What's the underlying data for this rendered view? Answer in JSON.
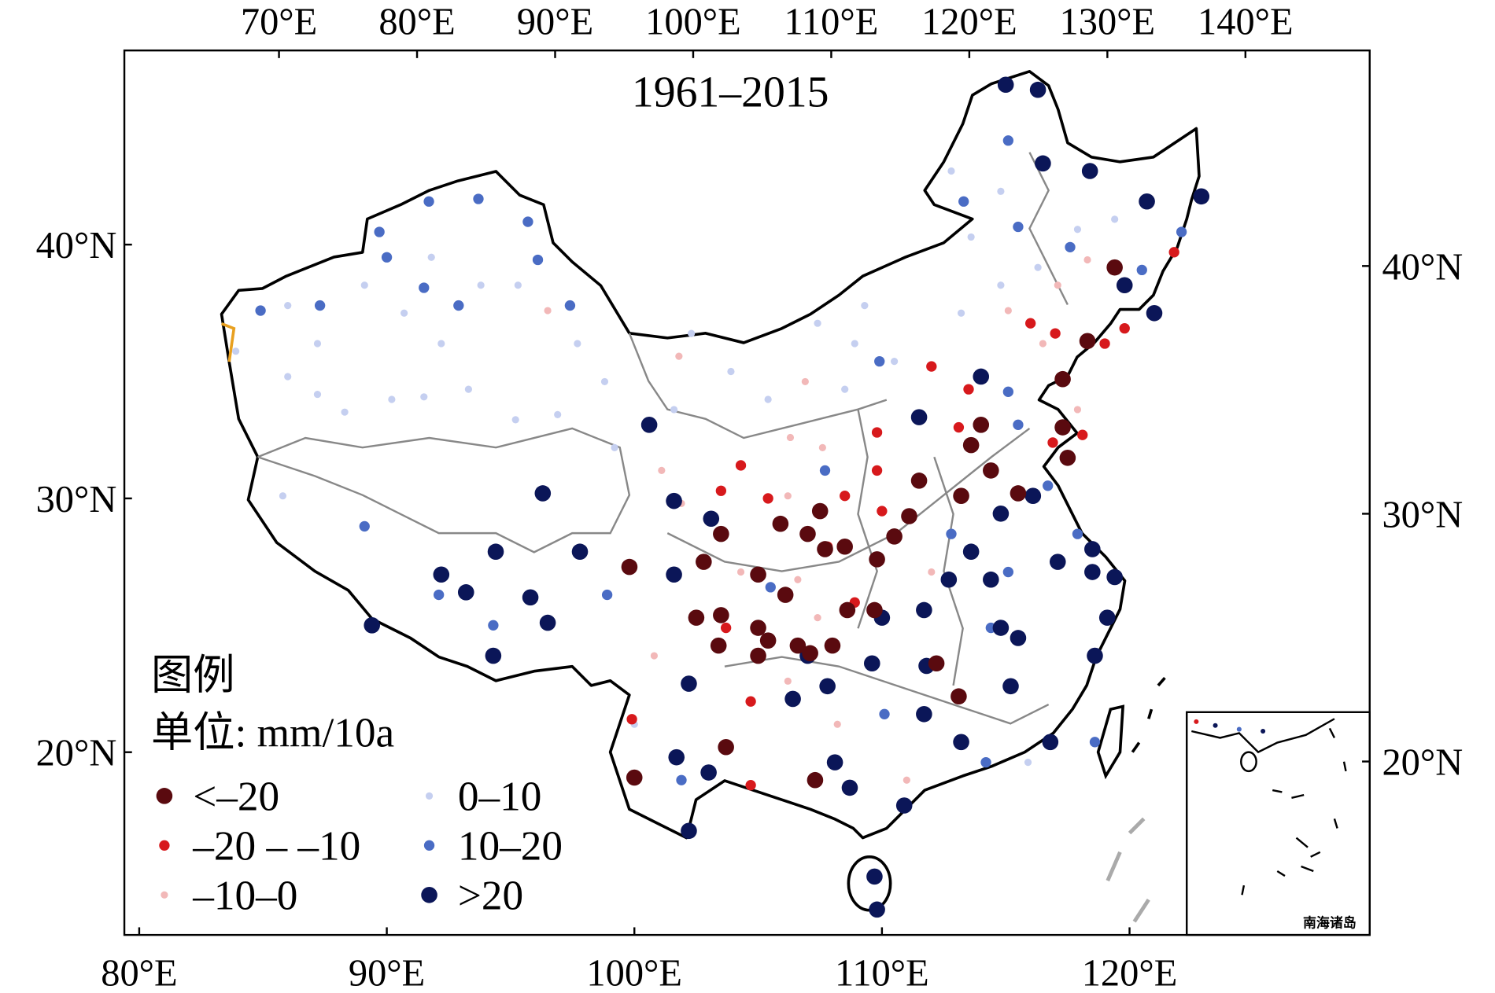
{
  "chart_data": {
    "type": "scatter",
    "title": "1961–2015",
    "legend_title": "图例",
    "unit_label": "单位: mm/10a",
    "inset_label": "南海诸岛",
    "legend": "lower left",
    "xlim": [
      79.4,
      129.7
    ],
    "ylim": [
      12.8,
      47.65
    ],
    "xticks": [
      {
        "value": 80,
        "label": "80°E"
      },
      {
        "value": 90,
        "label": "90°E"
      },
      {
        "value": 100,
        "label": "100°E"
      },
      {
        "value": 110,
        "label": "110°E"
      },
      {
        "value": 120,
        "label": "120°E"
      }
    ],
    "yticks": [
      {
        "value": 20,
        "label": "20°N"
      },
      {
        "value": 30,
        "label": "30°N"
      },
      {
        "value": 40,
        "label": "40°N"
      }
    ],
    "x2lim": [
      58.8,
      149.0
    ],
    "x2ticks": [
      {
        "value": 70,
        "label": "70°E"
      },
      {
        "value": 80,
        "label": "80°E"
      },
      {
        "value": 90,
        "label": "90°E"
      },
      {
        "value": 100,
        "label": "100°E"
      },
      {
        "value": 110,
        "label": "110°E"
      },
      {
        "value": 120,
        "label": "120°E"
      },
      {
        "value": 130,
        "label": "130°E"
      },
      {
        "value": 140,
        "label": "140°E"
      }
    ],
    "y2lim": [
      13.0,
      48.7
    ],
    "y2ticks": [
      {
        "value": 20,
        "label": "20°N"
      },
      {
        "value": 30,
        "label": "30°N"
      },
      {
        "value": 40,
        "label": "40°N"
      }
    ],
    "series": [
      {
        "name": "<–20",
        "color": "#5a0a0f",
        "size": 8.5,
        "x": [
          119.4,
          118.3,
          117.3,
          117.3,
          117.5,
          114.0,
          113.6,
          114.4,
          115.5,
          113.2,
          111.1,
          110.5,
          111.5,
          109.8,
          108.6,
          109.7,
          107.7,
          108.5,
          107.0,
          105.9,
          107.5,
          105.0,
          106.1,
          103.5,
          102.8,
          99.8,
          102.5,
          103.5,
          105.0,
          105.4,
          103.4,
          105.0,
          106.6,
          107.1,
          108.0,
          112.2,
          113.1,
          103.7,
          100.0,
          107.3
        ],
        "y": [
          39.1,
          36.2,
          34.7,
          32.8,
          31.6,
          32.9,
          32.1,
          31.1,
          30.2,
          30.1,
          29.3,
          28.5,
          30.7,
          27.6,
          25.6,
          25.6,
          28.0,
          28.1,
          28.6,
          29.0,
          29.5,
          27.0,
          26.2,
          28.6,
          27.5,
          27.3,
          25.3,
          25.4,
          24.9,
          24.4,
          24.2,
          23.8,
          24.2,
          23.9,
          24.2,
          23.5,
          22.2,
          20.2,
          19.0,
          18.9
        ]
      },
      {
        "name": "–20 – –10",
        "color": "#d7191c",
        "size": 5.5,
        "x": [
          121.8,
          119.8,
          119.0,
          117.0,
          116.0,
          113.5,
          112.0,
          113.1,
          118.1,
          116.9,
          109.8,
          109.8,
          108.5,
          110.0,
          107.8,
          108.9,
          104.3,
          103.5,
          105.4,
          103.7,
          104.7,
          99.9,
          104.7
        ],
        "y": [
          39.7,
          36.7,
          36.1,
          36.5,
          36.9,
          34.3,
          35.2,
          32.8,
          32.5,
          32.2,
          32.6,
          31.1,
          30.1,
          29.5,
          28.1,
          25.9,
          31.3,
          30.3,
          30.0,
          24.9,
          22.0,
          21.3,
          18.7
        ]
      },
      {
        "name": "–10–0",
        "color": "#f2b8b8",
        "size": 3.8,
        "x": [
          96.5,
          101.8,
          106.9,
          106.3,
          107.6,
          101.1,
          101.9,
          104.3,
          106.6,
          107.4,
          106.2,
          108.2,
          111.0,
          115.1,
          117.1,
          118.3,
          116.5,
          117.9,
          100.8,
          106.2,
          112.0
        ],
        "y": [
          37.4,
          35.6,
          34.6,
          32.4,
          32.0,
          31.1,
          29.8,
          27.1,
          26.8,
          25.3,
          22.8,
          21.1,
          18.9,
          37.4,
          38.4,
          39.4,
          36.1,
          33.5,
          23.8,
          30.1,
          27.1
        ]
      },
      {
        "name": "0–10",
        "color": "#c5cff0",
        "size": 3.8,
        "x": [
          83.9,
          86.0,
          87.2,
          88.3,
          85.8,
          90.2,
          91.5,
          93.3,
          95.2,
          96.9,
          98.8,
          101.6,
          103.9,
          105.4,
          108.5,
          110.5,
          113.2,
          114.8,
          116.3,
          117.9,
          119.4,
          112.8,
          114.8,
          113.6,
          91.8,
          93.8,
          95.3,
          90.7,
          89.1,
          86.0,
          87.2,
          92.2,
          97.7,
          102.3,
          107.4,
          109.3,
          115.9,
          100.0,
          99.2,
          108.9
        ],
        "y": [
          35.8,
          34.8,
          34.1,
          33.4,
          30.1,
          33.9,
          34.0,
          34.3,
          33.1,
          33.3,
          34.6,
          33.5,
          35.0,
          33.9,
          34.3,
          35.4,
          37.3,
          38.4,
          39.1,
          40.6,
          41.0,
          42.9,
          42.1,
          40.3,
          39.5,
          38.4,
          38.4,
          37.3,
          38.4,
          37.6,
          36.1,
          36.1,
          36.1,
          36.5,
          36.9,
          37.6,
          19.6,
          21.1,
          32.0,
          36.1
        ]
      },
      {
        "name": "10–20",
        "color": "#4a6cc4",
        "size": 5.5,
        "x": [
          84.9,
          87.3,
          89.7,
          90.0,
          91.7,
          93.7,
          95.7,
          96.1,
          97.4,
          91.5,
          92.9,
          89.1,
          92.1,
          94.3,
          98.9,
          115.1,
          113.3,
          115.5,
          117.6,
          120.5,
          122.1,
          115.5,
          116.7,
          117.9,
          112.8,
          115.1,
          114.4,
          118.6,
          114.2,
          109.9,
          107.7,
          115.1,
          105.5,
          101.9,
          110.1
        ],
        "y": [
          37.4,
          37.6,
          40.5,
          39.5,
          41.7,
          41.8,
          40.9,
          39.4,
          37.6,
          38.3,
          37.6,
          28.9,
          26.2,
          25.0,
          26.2,
          44.1,
          41.7,
          40.7,
          39.9,
          39.0,
          40.5,
          32.9,
          30.5,
          28.6,
          28.6,
          27.1,
          24.9,
          20.4,
          19.6,
          35.4,
          31.1,
          34.2,
          26.5,
          18.9,
          21.5
        ]
      },
      {
        "name": ">20",
        "color": "#0b1658",
        "size": 8.5,
        "x": [
          115.0,
          116.3,
          116.5,
          118.4,
          120.7,
          122.9,
          119.8,
          121.0,
          100.6,
          96.3,
          92.2,
          93.2,
          94.4,
          95.8,
          96.5,
          97.8,
          89.4,
          94.3,
          101.6,
          103.1,
          101.6,
          102.2,
          101.7,
          103.0,
          102.2,
          106.4,
          108.7,
          109.7,
          109.8,
          110.9,
          113.2,
          114.8,
          117.1,
          118.5,
          119.4,
          118.6,
          116.8,
          115.2,
          111.8,
          109.6,
          110.0,
          111.7,
          112.7,
          113.6,
          114.8,
          116.1,
          111.5,
          114.0,
          115.5,
          107.8,
          107.0,
          108.1,
          111.7,
          114.4,
          118.5,
          119.1
        ],
        "y": [
          46.3,
          46.1,
          43.2,
          42.9,
          41.7,
          41.9,
          38.4,
          37.3,
          32.9,
          30.2,
          27.0,
          26.3,
          27.9,
          26.1,
          25.1,
          27.9,
          25.0,
          23.8,
          29.9,
          29.2,
          27.0,
          22.7,
          19.8,
          19.2,
          16.9,
          22.1,
          18.6,
          15.1,
          13.8,
          17.9,
          20.4,
          24.9,
          27.5,
          27.1,
          26.9,
          23.8,
          20.4,
          22.6,
          23.4,
          23.5,
          25.3,
          25.6,
          26.8,
          27.9,
          29.4,
          30.1,
          33.2,
          34.8,
          24.5,
          22.6,
          23.8,
          19.6,
          21.5,
          26.8,
          28.0,
          25.3
        ]
      }
    ]
  }
}
